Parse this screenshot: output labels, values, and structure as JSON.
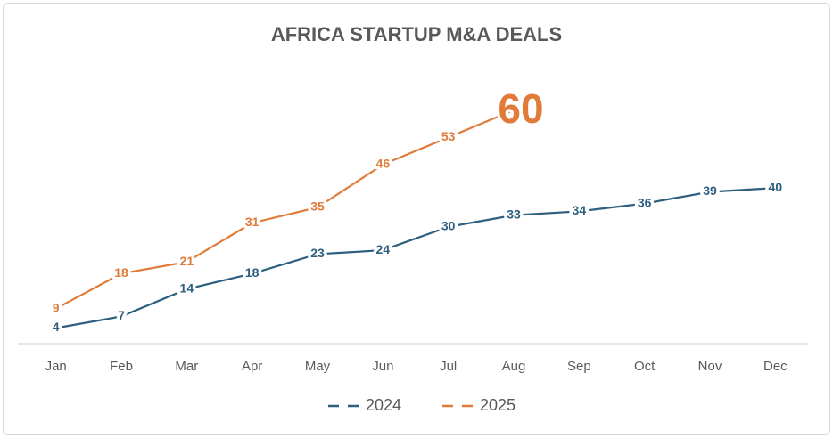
{
  "chart_data": {
    "type": "line",
    "title": "AFRICA STARTUP M&A DEALS",
    "categories": [
      "Jan",
      "Feb",
      "Mar",
      "Apr",
      "May",
      "Jun",
      "Jul",
      "Aug",
      "Sep",
      "Oct",
      "Nov",
      "Dec"
    ],
    "series": [
      {
        "name": "2024",
        "color": "#2e5f7f",
        "values": [
          4,
          7,
          14,
          18,
          23,
          24,
          30,
          33,
          34,
          36,
          39,
          40
        ]
      },
      {
        "name": "2025",
        "color": "#e07b39",
        "values": [
          9,
          18,
          21,
          31,
          35,
          46,
          53,
          60,
          null,
          null,
          null,
          null
        ]
      }
    ],
    "ylim": [
      0,
      70
    ],
    "legend": "bottom"
  }
}
